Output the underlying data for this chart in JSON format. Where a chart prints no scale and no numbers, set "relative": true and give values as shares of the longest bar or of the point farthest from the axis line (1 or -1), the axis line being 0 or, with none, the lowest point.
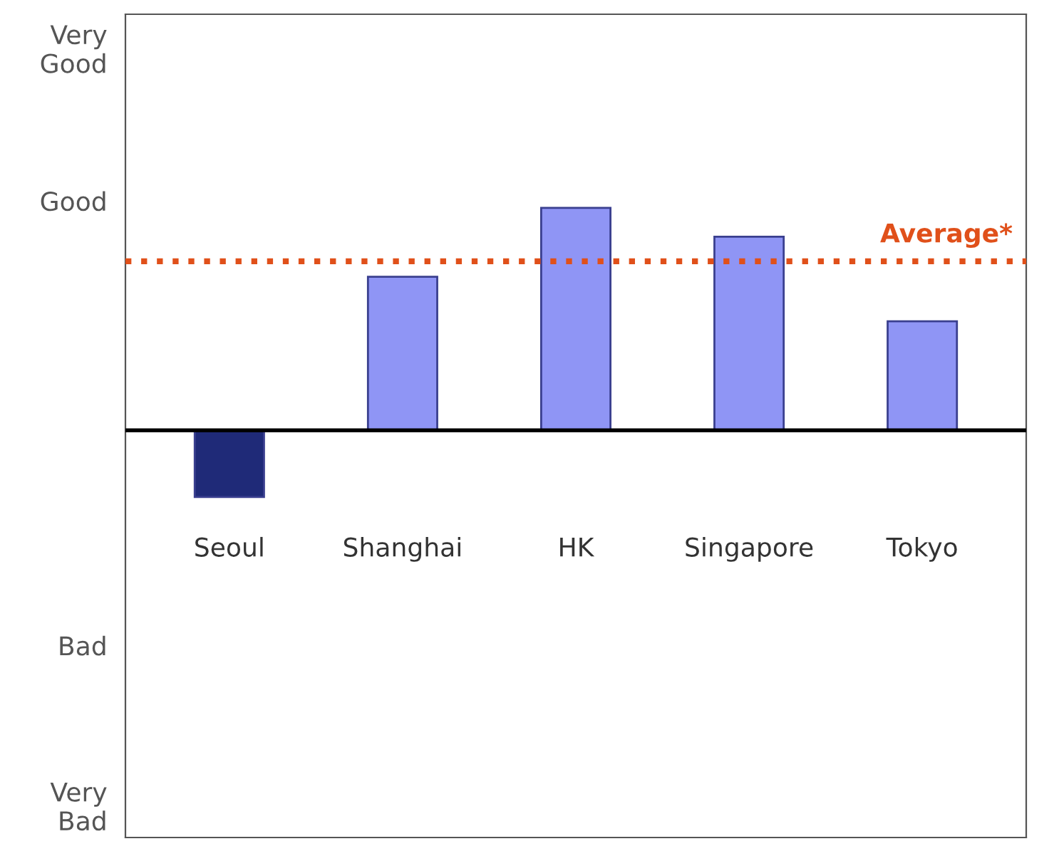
{
  "chart_data": {
    "type": "bar",
    "relative": true,
    "categories": [
      "Seoul",
      "Shanghai",
      "HK",
      "Singapore",
      "Tokyo"
    ],
    "values": [
      -0.3,
      0.69,
      1.0,
      0.87,
      0.49
    ],
    "colors": [
      "#1f2a78",
      "#8f95f5",
      "#8f95f5",
      "#8f95f5",
      "#8f95f5"
    ],
    "annotations": [
      "Very\nGood",
      "Good",
      "Bad",
      "Very\nBad"
    ],
    "ref_lines": [
      {
        "axis": "y",
        "value": 0.76,
        "label": "Average*",
        "color": "#e0501a",
        "line_style": "dotted"
      }
    ],
    "legend": false
  }
}
